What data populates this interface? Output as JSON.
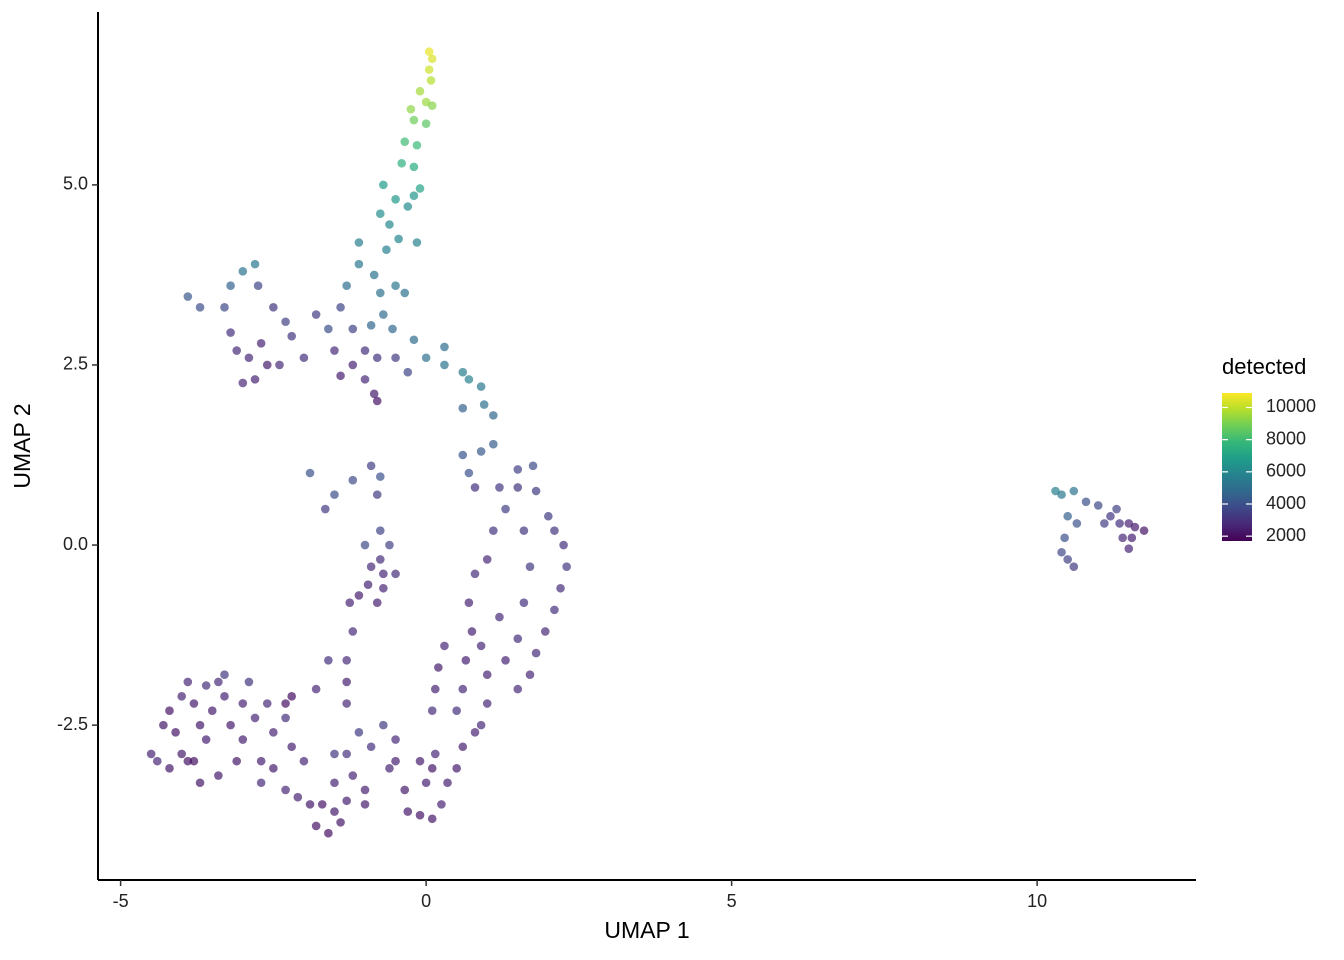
{
  "chart_data": {
    "type": "scatter",
    "x_label": "UMAP 1",
    "y_label": "UMAP 2",
    "xlim": [
      -5.37,
      12.6
    ],
    "ylim": [
      -4.65,
      7.4
    ],
    "xticks": [
      -5,
      0,
      5,
      10
    ],
    "yticks": [
      -2.5,
      {
        "value": 0,
        "label": "0.0"
      },
      2.5,
      {
        "value": 5,
        "label": "5.0"
      }
    ],
    "point_opacity": 0.7,
    "x": [
      0.05,
      0.1,
      0.05,
      0.08,
      -0.1,
      0.0,
      -0.25,
      0.1,
      -0.2,
      0.0,
      -0.35,
      -0.15,
      -0.4,
      -0.2,
      -0.1,
      -0.7,
      -0.5,
      -0.2,
      -0.75,
      -0.6,
      -0.3,
      -0.45,
      -1.1,
      -0.65,
      -0.15,
      -1.1,
      -0.85,
      -0.5,
      -1.3,
      -0.75,
      -0.35,
      -0.7,
      -0.9,
      -0.55,
      -0.2,
      0.3,
      0.0,
      0.3,
      0.6,
      0.7,
      0.9,
      0.95,
      1.1,
      0.6,
      1.1,
      0.9,
      0.6,
      0.7,
      -3.9,
      -3.7,
      -3.3,
      -3.0,
      -2.8,
      -3.2,
      -2.75,
      -2.5,
      -2.3,
      -2.2,
      -3.2,
      -3.1,
      -2.9,
      -2.7,
      -2.6,
      -2.8,
      -3.0,
      -2.4,
      -2.0,
      -1.6,
      -1.8,
      -1.4,
      -1.2,
      -1.5,
      -1.0,
      -0.8,
      -1.2,
      -1.4,
      -1.0,
      -0.85,
      -0.8,
      -0.5,
      -0.3,
      -1.9,
      -1.5,
      -1.2,
      -0.9,
      -0.8,
      -0.75,
      -1.65,
      0.8,
      1.2,
      1.5,
      1.8,
      1.75,
      1.5,
      2.0,
      2.1,
      2.25,
      2.3,
      2.2,
      2.1,
      1.95,
      1.8,
      1.7,
      1.5,
      1.5,
      1.6,
      1.7,
      1.6,
      1.3,
      1.1,
      1.0,
      0.8,
      0.7,
      0.75,
      0.9,
      1.2,
      1.3,
      1.0,
      0.65,
      0.3,
      0.2,
      0.15,
      0.6,
      1.0,
      0.9,
      0.8,
      0.6,
      0.5,
      0.35,
      0.25,
      0.1,
      -0.1,
      -0.3,
      -0.35,
      0.0,
      0.1,
      -0.1,
      -0.5,
      -0.6,
      0.15,
      0.1,
      0.5,
      -0.9,
      -0.7,
      -0.5,
      -0.6,
      -0.75,
      -0.95,
      -0.8,
      -1.1,
      -1.25,
      -0.7,
      -1.0,
      -0.75,
      -1.2,
      -1.3,
      -1.6,
      -1.8,
      -1.3,
      -1.3,
      -2.2,
      -2.3,
      -4.3,
      -4.2,
      -4.1,
      -4.0,
      -4.5,
      -4.4,
      -4.2,
      -3.9,
      -4.0,
      -3.8,
      -3.9,
      -3.7,
      -3.6,
      -3.5,
      -3.4,
      -3.3,
      -3.6,
      -3.2,
      -3.0,
      -3.1,
      -3.4,
      -3.7,
      -3.8,
      -2.8,
      -2.6,
      -2.9,
      -3.3,
      -3.0,
      -2.7,
      -2.5,
      -2.3,
      -2.1,
      -2.5,
      -2.2,
      -2.0,
      -2.3,
      -2.7,
      -1.9,
      -1.7,
      -1.5,
      -1.8,
      -1.6,
      -1.4,
      -1.3,
      -1.5,
      -1.2,
      -1.0,
      -1.3,
      -0.9,
      -1.0,
      -1.5,
      -1.1,
      -0.7,
      -0.5,
      10.3,
      10.4,
      10.6,
      10.5,
      10.45,
      10.4,
      10.5,
      10.6,
      10.65,
      10.8,
      11.0,
      11.2,
      11.35,
      11.5,
      11.6,
      11.75,
      11.1,
      11.4,
      11.55,
      11.3,
      11.5
    ],
    "values": [
      6.85,
      6.75,
      6.6,
      6.45,
      6.3,
      6.15,
      6.05,
      6.1,
      5.9,
      5.85,
      5.6,
      5.55,
      5.3,
      5.25,
      4.95,
      5.0,
      4.8,
      4.85,
      4.6,
      4.45,
      4.7,
      4.25,
      4.2,
      4.1,
      4.2,
      3.9,
      3.75,
      3.6,
      3.6,
      3.5,
      3.5,
      3.2,
      3.05,
      3.0,
      2.85,
      2.75,
      2.6,
      2.5,
      2.4,
      2.3,
      2.2,
      1.95,
      1.8,
      1.9,
      1.4,
      1.3,
      1.25,
      1.0,
      3.45,
      3.3,
      3.3,
      3.8,
      3.9,
      3.6,
      3.6,
      3.3,
      3.1,
      2.9,
      2.95,
      2.7,
      2.6,
      2.8,
      2.5,
      2.3,
      2.25,
      2.5,
      2.6,
      3.0,
      3.2,
      3.3,
      3.0,
      2.7,
      2.7,
      2.6,
      2.5,
      2.35,
      2.3,
      2.1,
      2.0,
      2.6,
      2.4,
      1.0,
      0.7,
      0.9,
      1.1,
      0.7,
      0.95,
      0.5,
      0.8,
      0.8,
      0.8,
      0.75,
      1.1,
      1.05,
      0.4,
      0.2,
      0.0,
      -0.3,
      -0.6,
      -0.9,
      -1.2,
      -1.5,
      -1.8,
      -2.0,
      -1.3,
      -0.8,
      -0.3,
      0.2,
      0.5,
      0.2,
      -0.2,
      -0.4,
      -0.8,
      -1.2,
      -1.4,
      -1.0,
      -1.6,
      -1.8,
      -1.6,
      -1.4,
      -1.7,
      -2.0,
      -2.0,
      -2.2,
      -2.5,
      -2.6,
      -2.8,
      -3.1,
      -3.3,
      -3.6,
      -3.8,
      -3.75,
      -3.7,
      -3.4,
      -3.3,
      -3.1,
      -3.0,
      -3.0,
      -3.1,
      -2.9,
      -2.3,
      -2.3,
      -0.3,
      -0.4,
      -0.4,
      0.0,
      -0.2,
      -0.55,
      -0.8,
      -0.7,
      -0.8,
      -0.6,
      0.0,
      0.2,
      -1.2,
      -1.6,
      -1.6,
      -2.0,
      -1.9,
      -2.2,
      -2.1,
      -2.2,
      -2.5,
      -2.3,
      -2.6,
      -2.9,
      -2.9,
      -3.0,
      -3.1,
      -3.0,
      -2.1,
      -2.2,
      -1.9,
      -2.5,
      -2.7,
      -2.3,
      -1.9,
      -2.1,
      -1.95,
      -2.5,
      -2.7,
      -3.0,
      -3.2,
      -3.3,
      -3.0,
      -2.4,
      -2.2,
      -1.9,
      -1.8,
      -2.2,
      -3.0,
      -3.1,
      -3.4,
      -3.5,
      -2.6,
      -2.8,
      -3.0,
      -2.4,
      -3.3,
      -3.6,
      -3.6,
      -3.7,
      -3.9,
      -4.0,
      -3.85,
      -3.55,
      -3.3,
      -3.2,
      -3.4,
      -2.9,
      -2.8,
      -3.6,
      -2.9,
      -2.6,
      -2.5,
      -2.7,
      0.75,
      0.7,
      0.75,
      0.4,
      0.1,
      -0.1,
      -0.2,
      -0.3,
      0.3,
      0.6,
      0.55,
      0.4,
      0.3,
      0.3,
      0.25,
      0.2,
      0.3,
      0.1,
      0.1,
      0.5,
      -0.05
    ],
    "color_values": [
      10600,
      10400,
      10200,
      9900,
      9600,
      9500,
      9300,
      9200,
      8800,
      8500,
      8000,
      7900,
      7500,
      7300,
      7000,
      6700,
      6600,
      6500,
      6200,
      6000,
      6100,
      5900,
      5600,
      5700,
      5800,
      5300,
      5200,
      5300,
      5000,
      5100,
      5200,
      4900,
      4700,
      4800,
      4900,
      5000,
      5100,
      5200,
      5600,
      5800,
      5300,
      5100,
      4700,
      4500,
      4400,
      4200,
      4100,
      4000,
      4200,
      3900,
      3700,
      5200,
      5400,
      4600,
      3600,
      3200,
      3500,
      3100,
      3000,
      2800,
      2700,
      2600,
      2400,
      2600,
      2700,
      2800,
      3000,
      3900,
      3300,
      3600,
      3500,
      2800,
      3000,
      3100,
      2600,
      2500,
      2800,
      2400,
      2200,
      3300,
      3600,
      4000,
      3900,
      3800,
      3400,
      3300,
      4000,
      3300,
      3000,
      3200,
      3100,
      3300,
      3800,
      3500,
      3300,
      3100,
      3000,
      3200,
      2900,
      3000,
      2800,
      2900,
      2700,
      2800,
      2900,
      3000,
      3300,
      3200,
      3400,
      3100,
      2700,
      2900,
      2600,
      2500,
      2700,
      2800,
      2600,
      2600,
      2500,
      2700,
      2400,
      2600,
      2800,
      2700,
      2800,
      2600,
      2500,
      2400,
      2500,
      2600,
      2300,
      2200,
      2300,
      2400,
      2500,
      2300,
      2400,
      2500,
      2600,
      2700,
      2900,
      3000,
      2800,
      2700,
      2900,
      3500,
      2900,
      2600,
      2500,
      2400,
      2600,
      2700,
      3800,
      3600,
      2800,
      2800,
      3000,
      2700,
      2500,
      2700,
      2000,
      2100,
      2300,
      2200,
      2200,
      2400,
      2600,
      2700,
      2300,
      2200,
      2600,
      2400,
      2700,
      2300,
      2500,
      2400,
      2800,
      2600,
      2900,
      2400,
      2500,
      2300,
      2400,
      2300,
      2100,
      2700,
      2800,
      3100,
      3200,
      2600,
      2500,
      2400,
      2700,
      2600,
      2600,
      2500,
      2700,
      2900,
      2800,
      2300,
      2200,
      2400,
      2200,
      2100,
      2300,
      2500,
      2600,
      2600,
      2500,
      3000,
      3000,
      2400,
      3200,
      3300,
      3300,
      2800,
      5700,
      5400,
      5200,
      4500,
      4000,
      3700,
      3500,
      3300,
      4000,
      3900,
      3700,
      3200,
      3000,
      2600,
      2400,
      2200,
      3400,
      2800,
      2500,
      3500,
      2600
    ],
    "colorbar": {
      "title": "detected",
      "lim": [
        1700,
        10900
      ],
      "ticks": [
        2000,
        4000,
        6000,
        8000,
        10000
      ],
      "colors": [
        "#440154",
        "#482878",
        "#3e4989",
        "#31688e",
        "#26828e",
        "#1f9e89",
        "#35b779",
        "#6ece58",
        "#b5de2b",
        "#fde725"
      ]
    }
  }
}
